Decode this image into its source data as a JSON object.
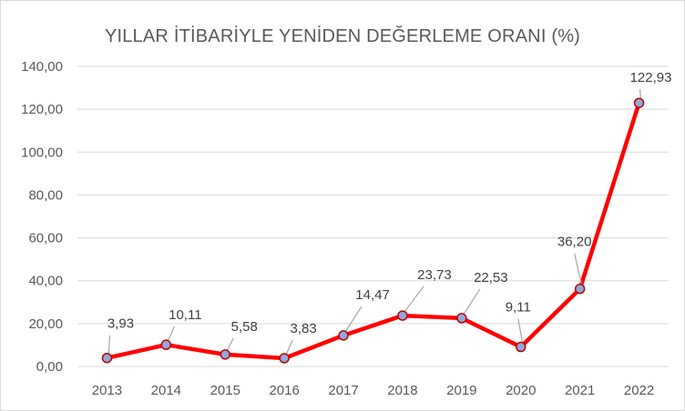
{
  "chart_data": {
    "type": "line",
    "title": "YILLAR İTİBARİYLE YENİDEN DEĞERLEME ORANI (%)",
    "xlabel": "",
    "ylabel": "",
    "categories": [
      "2013",
      "2014",
      "2015",
      "2016",
      "2017",
      "2018",
      "2019",
      "2020",
      "2021",
      "2022"
    ],
    "series": [
      {
        "values": [
          3.93,
          10.11,
          5.58,
          3.83,
          14.47,
          23.73,
          22.53,
          9.11,
          36.2,
          122.93
        ],
        "labels": [
          "3,93",
          "10,11",
          "5,58",
          "3,83",
          "14,47",
          "23,73",
          "22,53",
          "9,11",
          "36,20",
          "122,93"
        ]
      }
    ],
    "ylim": [
      0,
      140
    ],
    "yticks": [
      0,
      20,
      40,
      60,
      80,
      100,
      120,
      140
    ],
    "ytick_labels": [
      "0,00",
      "20,00",
      "40,00",
      "60,00",
      "80,00",
      "100,00",
      "120,00",
      "140,00"
    ],
    "grid": true,
    "legend": "none",
    "colors": {
      "line": "#ff0000",
      "marker_fill": "#8ea9db",
      "marker_stroke": "#c00000",
      "grid": "#d9d9d9",
      "leader": "#a6a6a6",
      "text": "#595959"
    }
  }
}
